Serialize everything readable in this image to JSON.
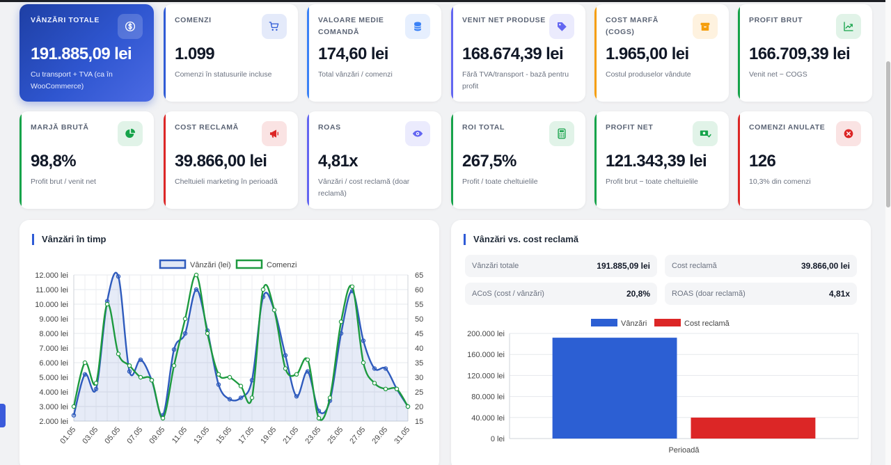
{
  "kpis": [
    {
      "label": "VÂNZĂRI TOTALE",
      "value": "191.885,09 lei",
      "sub": "Cu transport + TVA (ca în WooCommerce)",
      "icon": "dollar-icon",
      "color": "#2f56d0",
      "hero": true
    },
    {
      "label": "COMENZI",
      "value": "1.099",
      "sub": "Comenzi în statusurile incluse",
      "icon": "cart-icon",
      "color": "#2f5bd6"
    },
    {
      "label": "VALOARE MEDIE COMANDĂ",
      "value": "174,60 lei",
      "sub": "Total vânzări / comenzi",
      "icon": "database-icon",
      "color": "#3b82f6"
    },
    {
      "label": "VENIT NET PRODUSE",
      "value": "168.674,39 lei",
      "sub": "Fără TVA/transport - bază pentru profit",
      "icon": "tag-icon",
      "color": "#6366f1"
    },
    {
      "label": "COST MARFĂ (COGS)",
      "value": "1.965,00 lei",
      "sub": "Costul produselor vândute",
      "icon": "box-icon",
      "color": "#f59e0b"
    },
    {
      "label": "PROFIT BRUT",
      "value": "166.709,39 lei",
      "sub": "Venit net − COGS",
      "icon": "trend-up-icon",
      "color": "#16a34a"
    },
    {
      "label": "MARJĂ BRUTĂ",
      "value": "98,8%",
      "sub": "Profit brut / venit net",
      "icon": "pie-icon",
      "color": "#16a34a"
    },
    {
      "label": "COST RECLAMĂ",
      "value": "39.866,00 lei",
      "sub": "Cheltuieli marketing în perioadă",
      "icon": "megaphone-icon",
      "color": "#dc2626"
    },
    {
      "label": "ROAS",
      "value": "4,81x",
      "sub": "Vânzări / cost reclamă (doar reclamă)",
      "icon": "eye-icon",
      "color": "#6366f1"
    },
    {
      "label": "ROI TOTAL",
      "value": "267,5%",
      "sub": "Profit / toate cheltuielile",
      "icon": "calculator-icon",
      "color": "#16a34a"
    },
    {
      "label": "PROFIT NET",
      "value": "121.343,39 lei",
      "sub": "Profit brut − toate cheltuielile",
      "icon": "money-icon",
      "color": "#16a34a"
    },
    {
      "label": "COMENZI ANULATE",
      "value": "126",
      "sub": "10,3% din comenzi",
      "icon": "cancel-icon",
      "color": "#dc2626"
    }
  ],
  "left_panel": {
    "title": "Vânzări în timp"
  },
  "right_panel": {
    "title": "Vânzări vs. cost reclamă",
    "stats": [
      {
        "label": "Vânzări totale",
        "value": "191.885,09 lei"
      },
      {
        "label": "Cost reclamă",
        "value": "39.866,00 lei"
      },
      {
        "label": "ACoS (cost / vânzări)",
        "value": "20,8%"
      },
      {
        "label": "ROAS (doar reclamă)",
        "value": "4,81x"
      }
    ]
  },
  "chart_data": [
    {
      "type": "line",
      "x": [
        "01.05",
        "02.05",
        "03.05",
        "04.05",
        "05.05",
        "06.05",
        "07.05",
        "08.05",
        "09.05",
        "10.05",
        "11.05",
        "12.05",
        "13.05",
        "14.05",
        "15.05",
        "16.05",
        "17.05",
        "18.05",
        "19.05",
        "20.05",
        "21.05",
        "22.05",
        "23.05",
        "24.05",
        "25.05",
        "26.05",
        "27.05",
        "28.05",
        "29.05",
        "30.05",
        "31.05"
      ],
      "x_tick_labels": [
        "01.05",
        "03.05",
        "05.05",
        "07.05",
        "09.05",
        "11.05",
        "13.05",
        "15.05",
        "17.05",
        "19.05",
        "21.05",
        "23.05",
        "25.05",
        "27.05",
        "29.05",
        "31.05"
      ],
      "series": [
        {
          "name": "Vânzări (lei)",
          "axis": "left",
          "color": "#2f5bbd",
          "fill": true,
          "values": [
            2400,
            5200,
            4200,
            10200,
            11900,
            5400,
            6200,
            4800,
            2400,
            6900,
            8000,
            11000,
            8200,
            4500,
            3500,
            3600,
            4800,
            10500,
            9600,
            6500,
            3700,
            5400,
            2700,
            3400,
            8000,
            10900,
            7500,
            5600,
            5600,
            4200,
            3000
          ]
        },
        {
          "name": "Comenzi",
          "axis": "right",
          "color": "#1d9a3f",
          "fill": false,
          "values": [
            20,
            35,
            28,
            55,
            38,
            34,
            30,
            29,
            16,
            34,
            50,
            65,
            45,
            31,
            30,
            27,
            23,
            60,
            53,
            33,
            31,
            36,
            16,
            23,
            49,
            61,
            35,
            28,
            26,
            26,
            20
          ]
        }
      ],
      "ylim_left": [
        2000,
        12000
      ],
      "yticks_left": [
        "2.000 lei",
        "3.000 lei",
        "4.000 lei",
        "5.000 lei",
        "6.000 lei",
        "7.000 lei",
        "8.000 lei",
        "9.000 lei",
        "10.000 lei",
        "11.000 lei",
        "12.000 lei"
      ],
      "ylim_right": [
        15,
        65
      ],
      "yticks_right": [
        "15",
        "20",
        "25",
        "30",
        "35",
        "40",
        "45",
        "50",
        "55",
        "60",
        "65"
      ],
      "legend": "top",
      "grid": true
    },
    {
      "type": "bar",
      "categories": [
        "Perioadă"
      ],
      "series": [
        {
          "name": "Vânzări",
          "color": "#2c5fd3",
          "values": [
            191885.09
          ]
        },
        {
          "name": "Cost reclamă",
          "color": "#dc2626",
          "values": [
            39866.0
          ]
        }
      ],
      "ylim": [
        0,
        200000
      ],
      "yticks": [
        "0 lei",
        "40.000 lei",
        "80.000 lei",
        "120.000 lei",
        "160.000 lei",
        "200.000 lei"
      ],
      "legend": "top",
      "grid": true
    }
  ]
}
